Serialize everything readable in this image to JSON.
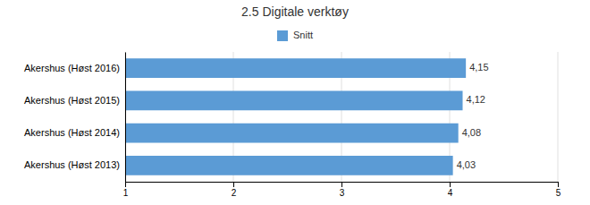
{
  "chart_data": {
    "type": "bar",
    "orientation": "horizontal",
    "title": "2.5 Digitale verktøy",
    "categories": [
      "Akershus (Høst 2016)",
      "Akershus (Høst 2015)",
      "Akershus (Høst 2014)",
      "Akershus (Høst 2013)"
    ],
    "series": [
      {
        "name": "Snitt",
        "color": "#5B9BD5",
        "values": [
          4.15,
          4.12,
          4.08,
          4.03
        ],
        "value_labels": [
          "4,15",
          "4,12",
          "4,08",
          "4,03"
        ]
      }
    ],
    "xlim": [
      1,
      5
    ],
    "xticks": [
      1,
      2,
      3,
      4,
      5
    ],
    "grid": true,
    "legend": "top",
    "data_labels": true
  }
}
